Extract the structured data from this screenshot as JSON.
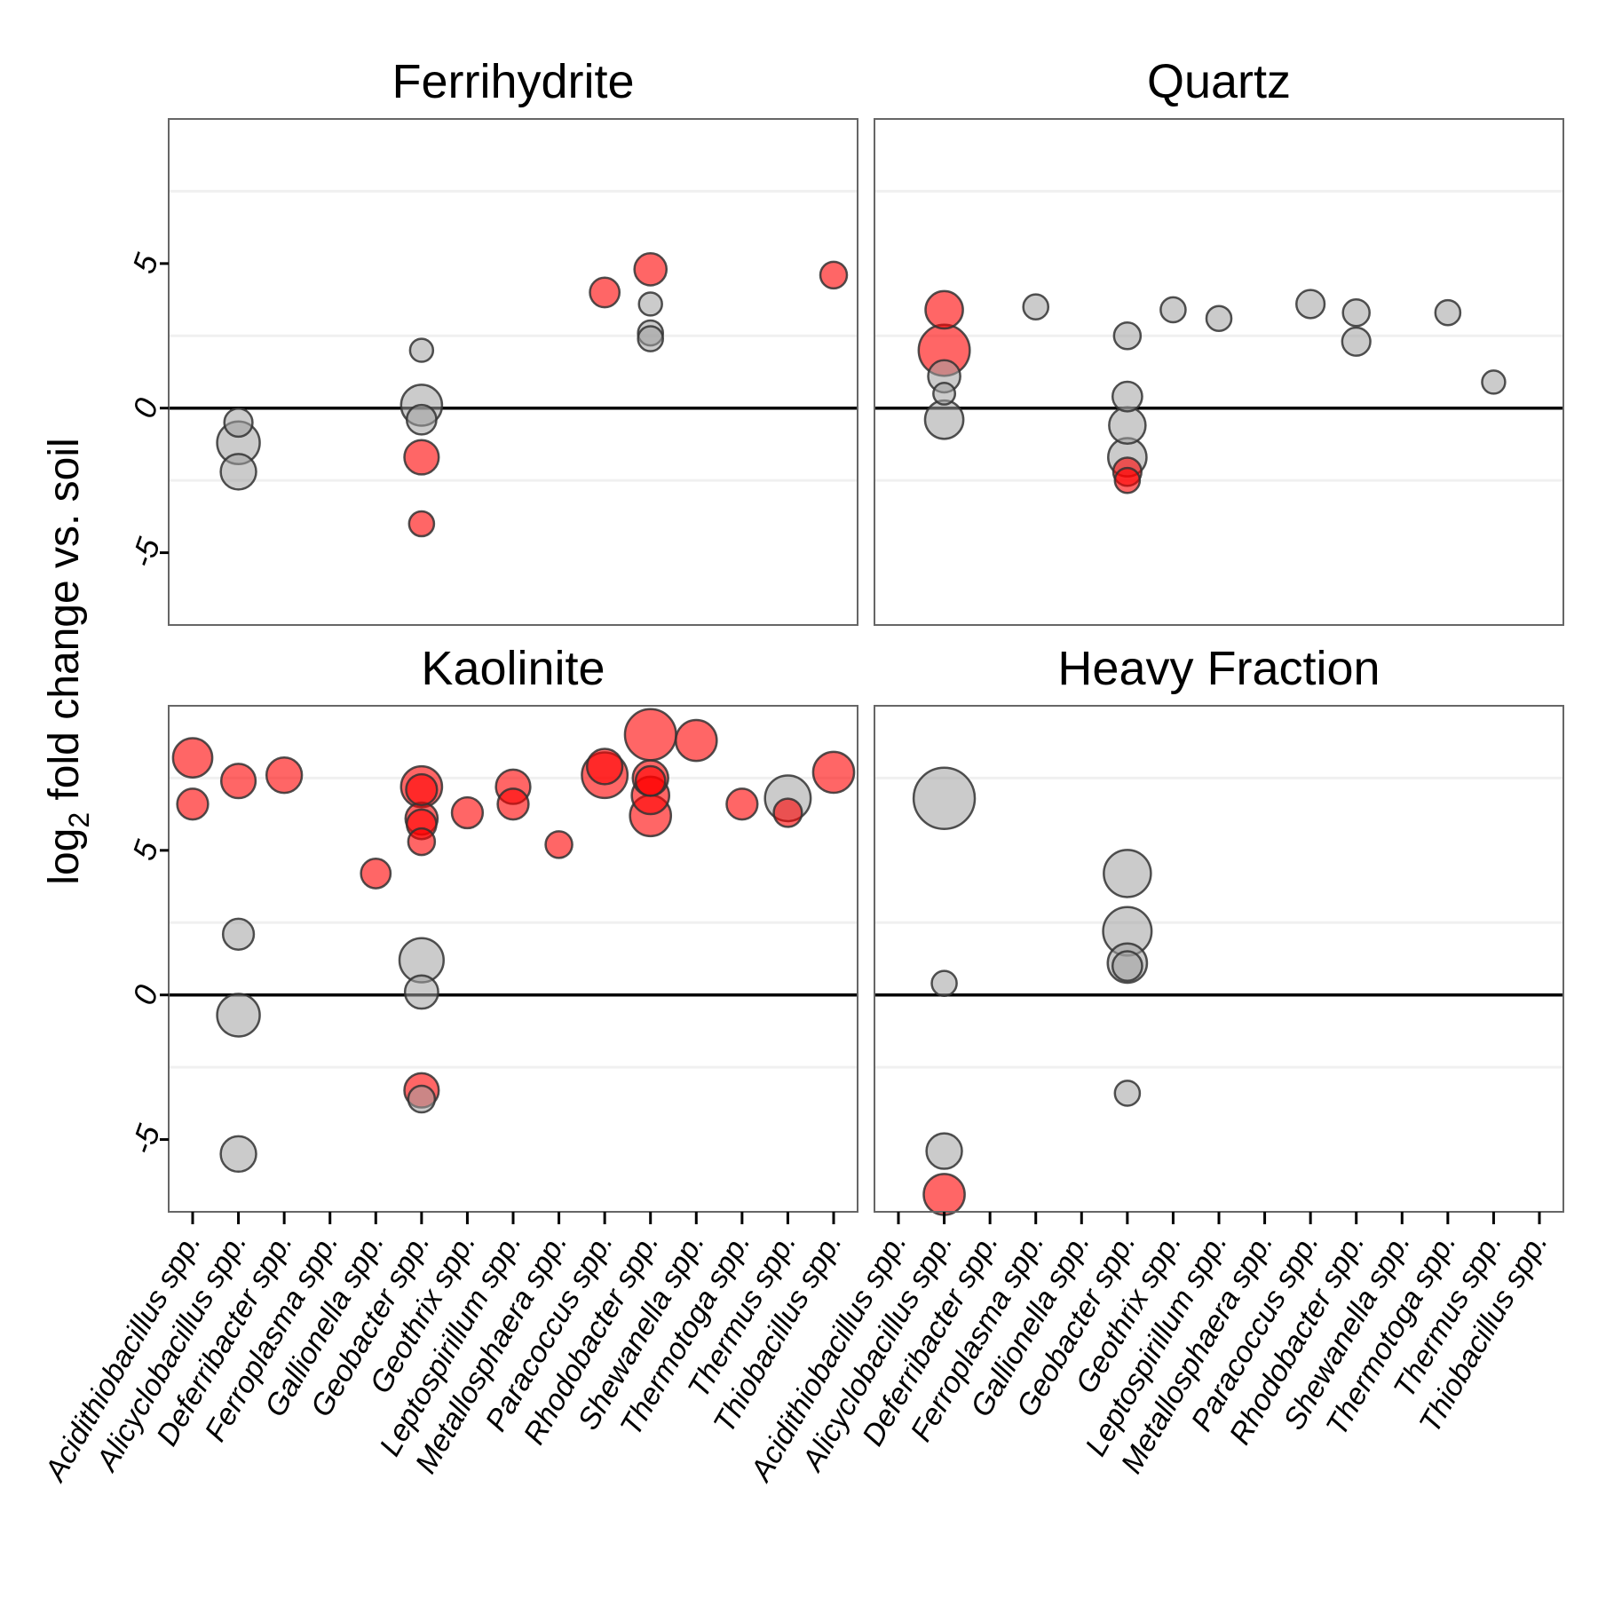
{
  "chart_data": {
    "type": "scatter",
    "ylabel": "log2 fold change vs. soil",
    "ylabel_parts": {
      "base": "log",
      "sub": "2",
      "rest": " fold change vs. soil"
    },
    "ylim": [
      -7.5,
      10
    ],
    "yticks": [
      "-5",
      "0",
      "5"
    ],
    "ytick_values": [
      -5,
      0,
      5
    ],
    "reference_line_y": 0,
    "grid": "minor horizontal gridlines",
    "colors": {
      "enriched": "#ff0000",
      "not_significant": "#a0a0a0",
      "point_edge": "#333333",
      "zero_line": "#000000"
    },
    "categories": [
      "Acidithiobacillus spp.",
      "Alicyclobacillus spp.",
      "Deferribacter spp.",
      "Ferroplasma spp.",
      "Gallionella spp.",
      "Geobacter spp.",
      "Geothrix spp.",
      "Leptospirillum spp.",
      "Metallosphaera spp.",
      "Paracoccus spp.",
      "Rhodobacter spp.",
      "Shewanella spp.",
      "Thermotoga spp.",
      "Thermus spp.",
      "Thiobacillus spp."
    ],
    "panels": [
      {
        "title": "Ferrihydrite",
        "points": [
          {
            "x": 1,
            "y": -0.5,
            "size": 0.3,
            "sig": false
          },
          {
            "x": 1,
            "y": -1.2,
            "size": 1.0,
            "sig": false
          },
          {
            "x": 1,
            "y": -2.2,
            "size": 0.6,
            "sig": false
          },
          {
            "x": 5,
            "y": 2.0,
            "size": 0.15,
            "sig": false
          },
          {
            "x": 5,
            "y": 0.1,
            "size": 0.9,
            "sig": false
          },
          {
            "x": 5,
            "y": -0.4,
            "size": 0.35,
            "sig": false
          },
          {
            "x": 5,
            "y": -1.7,
            "size": 0.55,
            "sig": true
          },
          {
            "x": 5,
            "y": -4.0,
            "size": 0.2,
            "sig": true
          },
          {
            "x": 9,
            "y": 4.0,
            "size": 0.35,
            "sig": true
          },
          {
            "x": 10,
            "y": 4.8,
            "size": 0.45,
            "sig": true
          },
          {
            "x": 10,
            "y": 3.6,
            "size": 0.15,
            "sig": false
          },
          {
            "x": 10,
            "y": 2.6,
            "size": 0.2,
            "sig": false
          },
          {
            "x": 10,
            "y": 2.4,
            "size": 0.2,
            "sig": false
          },
          {
            "x": 14,
            "y": 4.6,
            "size": 0.25,
            "sig": true
          }
        ]
      },
      {
        "title": "Quartz",
        "points": [
          {
            "x": 1,
            "y": 3.4,
            "size": 0.7,
            "sig": true
          },
          {
            "x": 1,
            "y": 2.0,
            "size": 1.6,
            "sig": true
          },
          {
            "x": 1,
            "y": 1.1,
            "size": 0.45,
            "sig": false
          },
          {
            "x": 1,
            "y": 0.5,
            "size": 0.12,
            "sig": false
          },
          {
            "x": 1,
            "y": -0.4,
            "size": 0.75,
            "sig": false
          },
          {
            "x": 3,
            "y": 3.5,
            "size": 0.2,
            "sig": false
          },
          {
            "x": 5,
            "y": 2.5,
            "size": 0.25,
            "sig": false
          },
          {
            "x": 5,
            "y": 0.4,
            "size": 0.35,
            "sig": false
          },
          {
            "x": 5,
            "y": -0.6,
            "size": 0.65,
            "sig": false
          },
          {
            "x": 5,
            "y": -1.7,
            "size": 0.75,
            "sig": false
          },
          {
            "x": 5,
            "y": -2.2,
            "size": 0.3,
            "sig": true
          },
          {
            "x": 5,
            "y": -2.5,
            "size": 0.2,
            "sig": true
          },
          {
            "x": 6,
            "y": 3.4,
            "size": 0.2,
            "sig": false
          },
          {
            "x": 7,
            "y": 3.1,
            "size": 0.2,
            "sig": false
          },
          {
            "x": 9,
            "y": 3.6,
            "size": 0.3,
            "sig": false
          },
          {
            "x": 10,
            "y": 3.3,
            "size": 0.25,
            "sig": false
          },
          {
            "x": 10,
            "y": 2.3,
            "size": 0.3,
            "sig": false
          },
          {
            "x": 12,
            "y": 3.3,
            "size": 0.2,
            "sig": false
          },
          {
            "x": 13,
            "y": 0.9,
            "size": 0.15,
            "sig": false
          }
        ]
      },
      {
        "title": "Kaolinite",
        "points": [
          {
            "x": 0,
            "y": 8.2,
            "size": 0.8,
            "sig": true
          },
          {
            "x": 0,
            "y": 6.6,
            "size": 0.4,
            "sig": true
          },
          {
            "x": 1,
            "y": 7.4,
            "size": 0.55,
            "sig": true
          },
          {
            "x": 1,
            "y": 2.1,
            "size": 0.4,
            "sig": false
          },
          {
            "x": 1,
            "y": -0.7,
            "size": 1.0,
            "sig": false
          },
          {
            "x": 1,
            "y": -5.5,
            "size": 0.6,
            "sig": false
          },
          {
            "x": 2,
            "y": 7.6,
            "size": 0.6,
            "sig": true
          },
          {
            "x": 4,
            "y": 4.2,
            "size": 0.35,
            "sig": true
          },
          {
            "x": 5,
            "y": 7.2,
            "size": 0.9,
            "sig": true
          },
          {
            "x": 5,
            "y": 7.1,
            "size": 0.4,
            "sig": true
          },
          {
            "x": 5,
            "y": 6.1,
            "size": 0.45,
            "sig": true
          },
          {
            "x": 5,
            "y": 5.9,
            "size": 0.35,
            "sig": true
          },
          {
            "x": 5,
            "y": 5.3,
            "size": 0.25,
            "sig": true
          },
          {
            "x": 5,
            "y": 1.2,
            "size": 1.1,
            "sig": false
          },
          {
            "x": 5,
            "y": 0.1,
            "size": 0.5,
            "sig": false
          },
          {
            "x": 5,
            "y": -3.3,
            "size": 0.55,
            "sig": true
          },
          {
            "x": 5,
            "y": -3.6,
            "size": 0.25,
            "sig": false
          },
          {
            "x": 6,
            "y": 6.3,
            "size": 0.4,
            "sig": true
          },
          {
            "x": 7,
            "y": 7.2,
            "size": 0.55,
            "sig": true
          },
          {
            "x": 7,
            "y": 6.6,
            "size": 0.4,
            "sig": true
          },
          {
            "x": 8,
            "y": 5.2,
            "size": 0.25,
            "sig": true
          },
          {
            "x": 9,
            "y": 7.6,
            "size": 1.2,
            "sig": true
          },
          {
            "x": 9,
            "y": 7.9,
            "size": 0.6,
            "sig": true
          },
          {
            "x": 10,
            "y": 9.0,
            "size": 1.6,
            "sig": true
          },
          {
            "x": 10,
            "y": 7.5,
            "size": 0.6,
            "sig": true
          },
          {
            "x": 10,
            "y": 7.4,
            "size": 0.35,
            "sig": true
          },
          {
            "x": 10,
            "y": 6.9,
            "size": 0.7,
            "sig": true
          },
          {
            "x": 10,
            "y": 6.2,
            "size": 0.9,
            "sig": true
          },
          {
            "x": 11,
            "y": 8.8,
            "size": 0.9,
            "sig": true
          },
          {
            "x": 12,
            "y": 6.6,
            "size": 0.4,
            "sig": true
          },
          {
            "x": 13,
            "y": 6.8,
            "size": 1.2,
            "sig": false
          },
          {
            "x": 13,
            "y": 6.3,
            "size": 0.3,
            "sig": true
          },
          {
            "x": 14,
            "y": 7.7,
            "size": 0.9,
            "sig": true
          }
        ]
      },
      {
        "title": "Heavy Fraction",
        "points": [
          {
            "x": 1,
            "y": 6.8,
            "size": 2.5,
            "sig": false
          },
          {
            "x": 1,
            "y": 0.4,
            "size": 0.2,
            "sig": false
          },
          {
            "x": 1,
            "y": -5.4,
            "size": 0.6,
            "sig": false
          },
          {
            "x": 1,
            "y": -6.9,
            "size": 0.9,
            "sig": true
          },
          {
            "x": 5,
            "y": 4.2,
            "size": 1.3,
            "sig": false
          },
          {
            "x": 5,
            "y": 2.2,
            "size": 1.4,
            "sig": false
          },
          {
            "x": 5,
            "y": 1.1,
            "size": 0.8,
            "sig": false
          },
          {
            "x": 5,
            "y": 1.0,
            "size": 0.35,
            "sig": false
          },
          {
            "x": 5,
            "y": -3.4,
            "size": 0.2,
            "sig": false
          }
        ]
      }
    ]
  }
}
